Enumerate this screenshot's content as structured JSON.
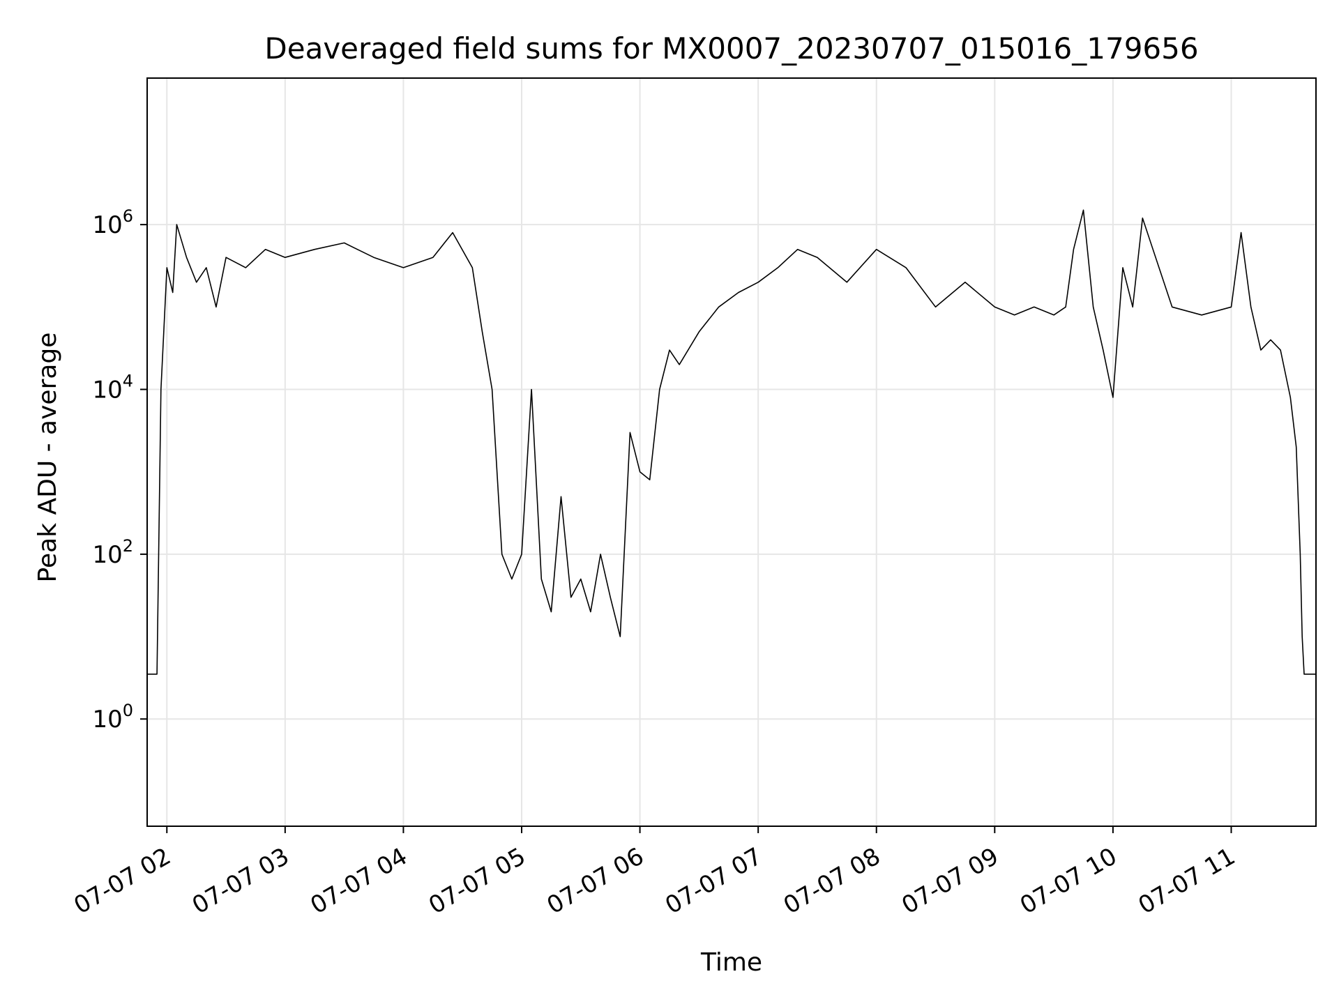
{
  "chart_data": {
    "type": "line",
    "title": "Deaveraged field sums for MX0007_20230707_015016_179656",
    "xlabel": "Time",
    "ylabel": "Peak ADU - average",
    "yscale": "log",
    "xlim": [
      "2023-07-07 01:50",
      "2023-07-07 11:43"
    ],
    "ylim": [
      0.05,
      60000000
    ],
    "grid": true,
    "line_color": "#000000",
    "grid_color": "#e6e6e6",
    "x_ticks": [
      "07-07 02",
      "07-07 03",
      "07-07 04",
      "07-07 05",
      "07-07 06",
      "07-07 07",
      "07-07 08",
      "07-07 09",
      "07-07 10",
      "07-07 11"
    ],
    "y_ticks": [
      {
        "base": "10",
        "exp": "0",
        "value": 1
      },
      {
        "base": "10",
        "exp": "2",
        "value": 100
      },
      {
        "base": "10",
        "exp": "4",
        "value": 10000
      },
      {
        "base": "10",
        "exp": "6",
        "value": 1000000
      }
    ],
    "series": [
      {
        "x": [
          "2023-07-07 01:50",
          "2023-07-07 01:55",
          "2023-07-07 01:57",
          "2023-07-07 02:00",
          "2023-07-07 02:03",
          "2023-07-07 02:05",
          "2023-07-07 02:10",
          "2023-07-07 02:15",
          "2023-07-07 02:20",
          "2023-07-07 02:25",
          "2023-07-07 02:30",
          "2023-07-07 02:40",
          "2023-07-07 02:50",
          "2023-07-07 03:00",
          "2023-07-07 03:15",
          "2023-07-07 03:30",
          "2023-07-07 03:45",
          "2023-07-07 04:00",
          "2023-07-07 04:15",
          "2023-07-07 04:25",
          "2023-07-07 04:35",
          "2023-07-07 04:40",
          "2023-07-07 04:45",
          "2023-07-07 04:50",
          "2023-07-07 04:55",
          "2023-07-07 05:00",
          "2023-07-07 05:05",
          "2023-07-07 05:10",
          "2023-07-07 05:15",
          "2023-07-07 05:20",
          "2023-07-07 05:25",
          "2023-07-07 05:30",
          "2023-07-07 05:35",
          "2023-07-07 05:40",
          "2023-07-07 05:45",
          "2023-07-07 05:50",
          "2023-07-07 05:55",
          "2023-07-07 06:00",
          "2023-07-07 06:05",
          "2023-07-07 06:10",
          "2023-07-07 06:15",
          "2023-07-07 06:20",
          "2023-07-07 06:30",
          "2023-07-07 06:40",
          "2023-07-07 06:50",
          "2023-07-07 07:00",
          "2023-07-07 07:10",
          "2023-07-07 07:20",
          "2023-07-07 07:30",
          "2023-07-07 07:45",
          "2023-07-07 08:00",
          "2023-07-07 08:15",
          "2023-07-07 08:30",
          "2023-07-07 08:45",
          "2023-07-07 09:00",
          "2023-07-07 09:10",
          "2023-07-07 09:20",
          "2023-07-07 09:30",
          "2023-07-07 09:36",
          "2023-07-07 09:40",
          "2023-07-07 09:45",
          "2023-07-07 09:50",
          "2023-07-07 09:55",
          "2023-07-07 10:00",
          "2023-07-07 10:05",
          "2023-07-07 10:10",
          "2023-07-07 10:15",
          "2023-07-07 10:30",
          "2023-07-07 10:45",
          "2023-07-07 11:00",
          "2023-07-07 11:05",
          "2023-07-07 11:10",
          "2023-07-07 11:15",
          "2023-07-07 11:20",
          "2023-07-07 11:25",
          "2023-07-07 11:30",
          "2023-07-07 11:33",
          "2023-07-07 11:35",
          "2023-07-07 11:36",
          "2023-07-07 11:37",
          "2023-07-07 11:43"
        ],
        "y": [
          3.5,
          3.5,
          10000,
          300000,
          150000,
          1000000,
          400000,
          200000,
          300000,
          100000,
          400000,
          300000,
          500000,
          400000,
          500000,
          600000,
          400000,
          300000,
          400000,
          800000,
          300000,
          50000,
          10000,
          100,
          50,
          100,
          10000,
          50,
          20,
          500,
          30,
          50,
          20,
          100,
          30,
          10,
          3000,
          1000,
          800,
          10000,
          30000,
          20000,
          50000,
          100000,
          150000,
          200000,
          300000,
          500000,
          400000,
          200000,
          500000,
          300000,
          100000,
          200000,
          100000,
          80000,
          100000,
          80000,
          100000,
          500000,
          1500000,
          100000,
          30000,
          8000,
          300000,
          100000,
          1200000,
          100000,
          80000,
          100000,
          800000,
          100000,
          30000,
          40000,
          30000,
          8000,
          2000,
          100,
          10,
          3.5,
          3.5
        ]
      }
    ]
  }
}
